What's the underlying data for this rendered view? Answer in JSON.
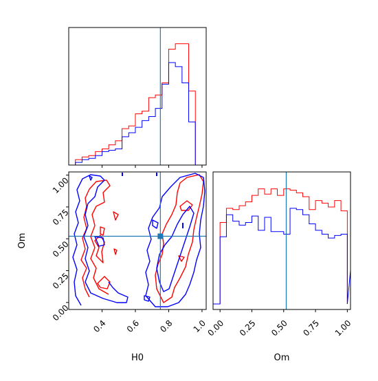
{
  "chart_data": {
    "type": "corner",
    "parameters": [
      "H0",
      "Om"
    ],
    "truths": {
      "H0": 0.75,
      "Om": 0.52
    },
    "series": [
      {
        "color": "#ff0000"
      },
      {
        "color": "#0000ff"
      }
    ],
    "truth_color": "#1f77b4",
    "panels": [
      {
        "id": "hist-H0",
        "type": "step-histogram",
        "param": "H0",
        "xlim": [
          0.2,
          1.025
        ],
        "ylim": [
          0,
          1.0
        ],
        "edges": [
          0.2,
          0.24,
          0.28,
          0.32,
          0.36,
          0.4,
          0.44,
          0.48,
          0.52,
          0.56,
          0.6,
          0.64,
          0.68,
          0.72,
          0.76,
          0.8,
          0.84,
          0.88,
          0.92,
          0.96,
          1.0
        ],
        "counts": [
          [
            0.0,
            0.04,
            0.06,
            0.07,
            0.1,
            0.12,
            0.15,
            0.18,
            0.27,
            0.29,
            0.38,
            0.4,
            0.5,
            0.52,
            0.61,
            0.86,
            0.9,
            0.9,
            0.55,
            0.0
          ],
          [
            0.0,
            0.02,
            0.04,
            0.05,
            0.07,
            0.1,
            0.11,
            0.12,
            0.21,
            0.24,
            0.28,
            0.33,
            0.36,
            0.42,
            0.6,
            0.76,
            0.73,
            0.61,
            0.32,
            0.0
          ]
        ],
        "yticks": []
      },
      {
        "id": "contour-H0-Om",
        "type": "contour",
        "xlim": [
          0.2,
          1.025
        ],
        "ylim": [
          -0.055,
          1.025
        ],
        "xticks": [
          "0.4",
          "0.6",
          "0.8",
          "1.0"
        ],
        "yticks": [
          "0.00",
          "0.25",
          "0.50",
          "0.75",
          "1.00"
        ],
        "xlabel": "H0",
        "ylabel": "Om"
      },
      {
        "id": "hist-Om",
        "type": "step-histogram",
        "param": "Om",
        "xlim": [
          -0.055,
          1.025
        ],
        "ylim": [
          0,
          1.0
        ],
        "edges": [
          0.0,
          0.05,
          0.1,
          0.15,
          0.2,
          0.25,
          0.3,
          0.35,
          0.4,
          0.45,
          0.5,
          0.55,
          0.6,
          0.65,
          0.7,
          0.75,
          0.8,
          0.85,
          0.9,
          0.95,
          1.0
        ],
        "counts": [
          [
            0.63,
            0.74,
            0.73,
            0.76,
            0.79,
            0.84,
            0.89,
            0.85,
            0.89,
            0.84,
            0.89,
            0.88,
            0.86,
            0.83,
            0.73,
            0.8,
            0.78,
            0.75,
            0.8,
            0.72
          ],
          [
            0.52,
            0.69,
            0.64,
            0.61,
            0.63,
            0.68,
            0.57,
            0.67,
            0.56,
            0.56,
            0.54,
            0.74,
            0.73,
            0.69,
            0.62,
            0.57,
            0.54,
            0.51,
            0.53,
            0.54
          ]
        ],
        "xticks": [
          "0.00",
          "0.25",
          "0.50",
          "0.75",
          "1.00"
        ],
        "xlabel": "Om",
        "yticks": []
      }
    ]
  }
}
